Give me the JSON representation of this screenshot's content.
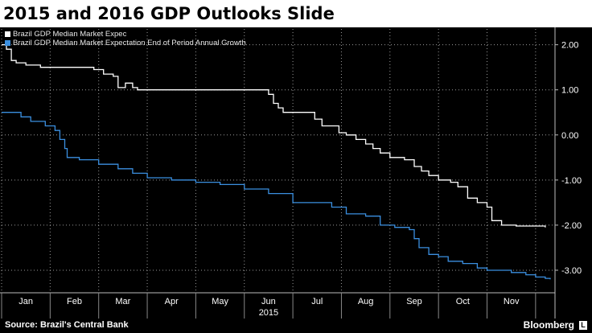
{
  "header": {
    "title": "2015 and 2016 GDP Outlooks Slide"
  },
  "footer": {
    "source": "Source: Brazil's Central Bank",
    "brand": "Bloomberg",
    "brand_mark": "L"
  },
  "colors": {
    "series1": "#ffffff",
    "series2": "#3b8fe0",
    "grid": "#9a9a9a"
  },
  "chart_data": {
    "type": "line",
    "title": "2015 and 2016 GDP Outlooks Slide",
    "xlabel": "2015",
    "ylabel": "",
    "x_range": [
      0,
      11.4
    ],
    "ylim": [
      -3.5,
      2.35
    ],
    "y_ticks": [
      2.0,
      1.0,
      0.0,
      -1.0,
      -2.0,
      -3.0
    ],
    "y_tick_labels": [
      "2.00",
      "1.00",
      "0.00",
      "-1.00",
      "-2.00",
      "-3.00"
    ],
    "x_tick_labels": [
      "Jan",
      "Feb",
      "Mar",
      "Apr",
      "May",
      "Jun",
      "Jul",
      "Aug",
      "Sep",
      "Oct",
      "Nov"
    ],
    "legend_position": "top-left",
    "grid": true,
    "series": [
      {
        "name": "Brazil GDP Median Market Expec",
        "color": "#ffffff",
        "points": [
          [
            0,
            2.0
          ],
          [
            0.1,
            1.9
          ],
          [
            0.2,
            1.65
          ],
          [
            0.3,
            1.6
          ],
          [
            0.5,
            1.55
          ],
          [
            0.8,
            1.5
          ],
          [
            1.0,
            1.5
          ],
          [
            1.5,
            1.5
          ],
          [
            1.9,
            1.45
          ],
          [
            2.1,
            1.35
          ],
          [
            2.3,
            1.3
          ],
          [
            2.4,
            1.05
          ],
          [
            2.55,
            1.15
          ],
          [
            2.7,
            1.05
          ],
          [
            2.8,
            1.0
          ],
          [
            3.0,
            1.0
          ],
          [
            4.0,
            1.0
          ],
          [
            4.8,
            1.0
          ],
          [
            5.3,
            1.0
          ],
          [
            5.5,
            0.9
          ],
          [
            5.6,
            0.7
          ],
          [
            5.7,
            0.6
          ],
          [
            5.8,
            0.5
          ],
          [
            6.0,
            0.5
          ],
          [
            6.35,
            0.5
          ],
          [
            6.45,
            0.35
          ],
          [
            6.6,
            0.2
          ],
          [
            6.8,
            0.2
          ],
          [
            6.95,
            0.05
          ],
          [
            7.1,
            0.0
          ],
          [
            7.3,
            -0.1
          ],
          [
            7.5,
            -0.2
          ],
          [
            7.65,
            -0.3
          ],
          [
            7.8,
            -0.4
          ],
          [
            8.0,
            -0.5
          ],
          [
            8.3,
            -0.55
          ],
          [
            8.5,
            -0.7
          ],
          [
            8.65,
            -0.8
          ],
          [
            8.8,
            -0.9
          ],
          [
            9.0,
            -1.0
          ],
          [
            9.25,
            -1.05
          ],
          [
            9.4,
            -1.15
          ],
          [
            9.6,
            -1.4
          ],
          [
            9.8,
            -1.5
          ],
          [
            10.0,
            -1.6
          ],
          [
            10.1,
            -1.9
          ],
          [
            10.3,
            -2.0
          ],
          [
            10.6,
            -2.02
          ],
          [
            11.0,
            -2.02
          ],
          [
            11.2,
            -2.05
          ]
        ]
      },
      {
        "name": "Brazil GDP Median Market Expectation End of Period Annual Growth",
        "color": "#3b8fe0",
        "points": [
          [
            0,
            0.5
          ],
          [
            0.3,
            0.5
          ],
          [
            0.4,
            0.4
          ],
          [
            0.6,
            0.3
          ],
          [
            0.9,
            0.2
          ],
          [
            1.1,
            0.1
          ],
          [
            1.2,
            -0.1
          ],
          [
            1.3,
            -0.3
          ],
          [
            1.35,
            -0.5
          ],
          [
            1.6,
            -0.55
          ],
          [
            2.0,
            -0.65
          ],
          [
            2.4,
            -0.75
          ],
          [
            2.7,
            -0.85
          ],
          [
            3.0,
            -0.95
          ],
          [
            3.5,
            -1.0
          ],
          [
            4.0,
            -1.05
          ],
          [
            4.5,
            -1.1
          ],
          [
            5.0,
            -1.2
          ],
          [
            5.5,
            -1.3
          ],
          [
            6.0,
            -1.5
          ],
          [
            6.6,
            -1.5
          ],
          [
            6.8,
            -1.6
          ],
          [
            7.1,
            -1.75
          ],
          [
            7.5,
            -1.8
          ],
          [
            7.8,
            -2.0
          ],
          [
            8.1,
            -2.05
          ],
          [
            8.4,
            -2.1
          ],
          [
            8.5,
            -2.3
          ],
          [
            8.6,
            -2.5
          ],
          [
            8.8,
            -2.65
          ],
          [
            9.0,
            -2.7
          ],
          [
            9.2,
            -2.8
          ],
          [
            9.5,
            -2.85
          ],
          [
            9.8,
            -2.95
          ],
          [
            10.0,
            -3.0
          ],
          [
            10.5,
            -3.05
          ],
          [
            10.8,
            -3.1
          ],
          [
            11.0,
            -3.15
          ],
          [
            11.2,
            -3.18
          ],
          [
            11.3,
            -3.2
          ]
        ]
      }
    ]
  }
}
